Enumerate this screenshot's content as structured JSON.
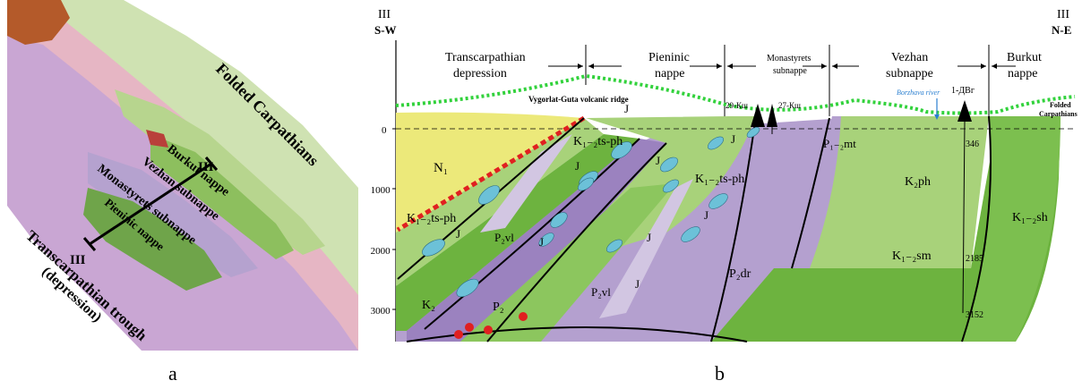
{
  "panel_a": {
    "label": "a",
    "regions": {
      "folded_carpathians": "Folded Carpathians",
      "burkut_nappe": "Burkut nappe",
      "vezhan_subnappe": "Vezhan subnappe",
      "monastyrets_subnappe": "Monastyrets subnappe",
      "pieninic_nappe": "Pieninic nappe",
      "transcarpathian_trough": "Transcarpathian trough",
      "depression": "(depression)"
    },
    "section_end_ne": "III",
    "section_end_sw": "III"
  },
  "panel_b": {
    "label": "b",
    "left_end": "III",
    "left_dir": "S-W",
    "right_end": "III",
    "right_dir": "N-E",
    "zones": {
      "transcarpathian_1": "Transcarpathian",
      "transcarpathian_2": "depression",
      "pieninic_1": "Pieninic",
      "pieninic_2": "nappe",
      "monastyrets_1": "Monastyrets",
      "monastyrets_2": "subnappe",
      "vezhan_1": "Vezhan",
      "vezhan_2": "subnappe",
      "burkut_1": "Burkut",
      "burkut_2": "nappe"
    },
    "ridge_label": "Vygorlat-Guta volcanic ridge",
    "wells": {
      "w29": "29-Кш",
      "w27": "27-Кш",
      "w1": "1-ДВг"
    },
    "river": "Borzhava river",
    "folded_1": "Folded",
    "folded_2": "Carpathians",
    "depths": [
      "0",
      "-1000",
      "-2000",
      "-3000"
    ],
    "well_depths": [
      "346",
      "2185",
      "3152"
    ],
    "units": {
      "n1": "N₁",
      "k12tsph_left": "K₁₋₂ts-ph",
      "k12tsph_top": "K₁₋₂ts-ph",
      "k12tsph_mid": "K₁₋₂ts-ph",
      "p2vl_a": "P₂vl",
      "p2vl_b": "P₂vl",
      "k2": "K₂",
      "p2": "P₂",
      "p2dr": "P₂dr",
      "p12mt": "P₁₋₂mt",
      "k2ph": "K₂ph",
      "k12sm": "K₁₋₂sm",
      "k12sh": "K₁₋₂sh",
      "j": "J"
    },
    "colors": {
      "n1_yellow": "#ece97a",
      "green_light": "#a8d27a",
      "green_mid": "#8cc65e",
      "green_dark": "#6db33f",
      "purple": "#b4a0cf",
      "purple_light": "#d2c6e2",
      "purple_dark": "#9b82bf",
      "blue_lens": "#6cc1d8",
      "red_line": "#e02020",
      "dotted_green": "#32d23c"
    }
  }
}
